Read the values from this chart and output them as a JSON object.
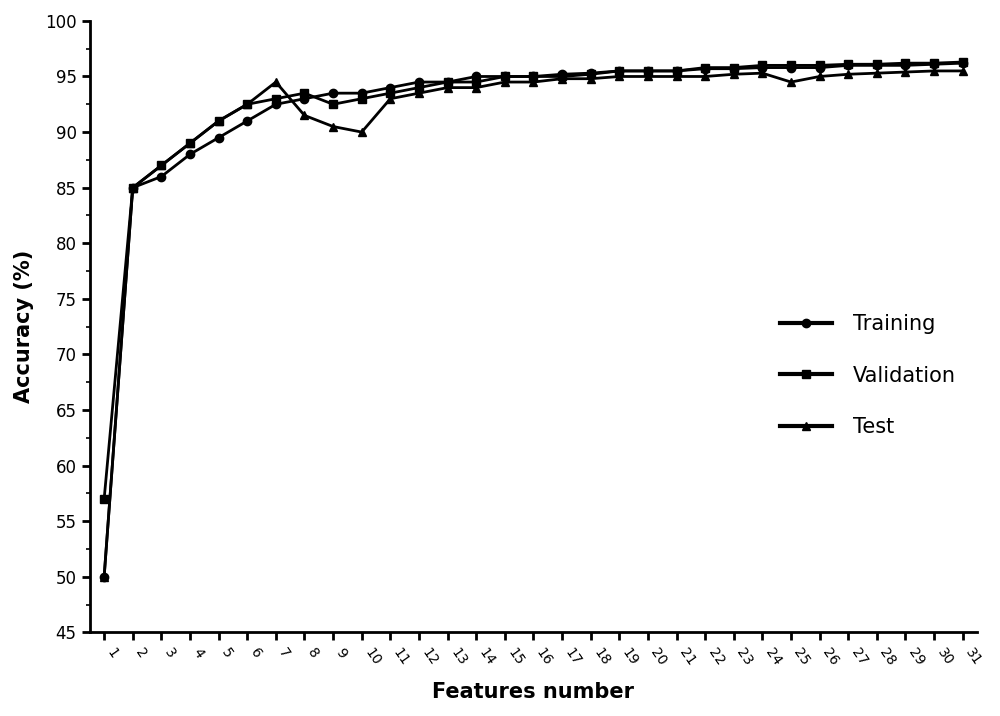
{
  "x": [
    1,
    2,
    3,
    4,
    5,
    6,
    7,
    8,
    9,
    10,
    11,
    12,
    13,
    14,
    15,
    16,
    17,
    18,
    19,
    20,
    21,
    22,
    23,
    24,
    25,
    26,
    27,
    28,
    29,
    30,
    31
  ],
  "training": [
    50,
    85,
    86,
    88,
    89.5,
    91,
    92.5,
    93,
    93.5,
    93.5,
    94,
    94.5,
    94.5,
    95,
    95,
    95,
    95.2,
    95.3,
    95.5,
    95.5,
    95.5,
    95.7,
    95.7,
    95.8,
    95.8,
    95.8,
    96,
    96,
    96,
    96.1,
    96.2
  ],
  "validation": [
    57,
    85,
    87,
    89,
    91,
    92.5,
    93,
    93.5,
    92.5,
    93,
    93.5,
    94,
    94.5,
    94.5,
    95,
    95,
    95,
    95.2,
    95.5,
    95.5,
    95.5,
    95.8,
    95.8,
    96,
    96,
    96,
    96.1,
    96.1,
    96.2,
    96.2,
    96.3
  ],
  "test": [
    50,
    85,
    87,
    89,
    91,
    92.5,
    94.5,
    91.5,
    90.5,
    90,
    93,
    93.5,
    94,
    94,
    94.5,
    94.5,
    94.8,
    94.8,
    95,
    95,
    95,
    95,
    95.2,
    95.3,
    94.5,
    95,
    95.2,
    95.3,
    95.4,
    95.5,
    95.5
  ],
  "xlabel": "Features number",
  "ylabel": "Accuracy (%)",
  "ylim": [
    45,
    100
  ],
  "yticks": [
    45,
    50,
    55,
    60,
    65,
    70,
    75,
    80,
    85,
    90,
    95,
    100
  ],
  "line_color": "#000000",
  "background_color": "#ffffff",
  "legend_labels": [
    "Training",
    "Validation",
    "Test"
  ],
  "legend_markers": [
    "o",
    "s",
    "^"
  ],
  "tick_rotation": -55
}
